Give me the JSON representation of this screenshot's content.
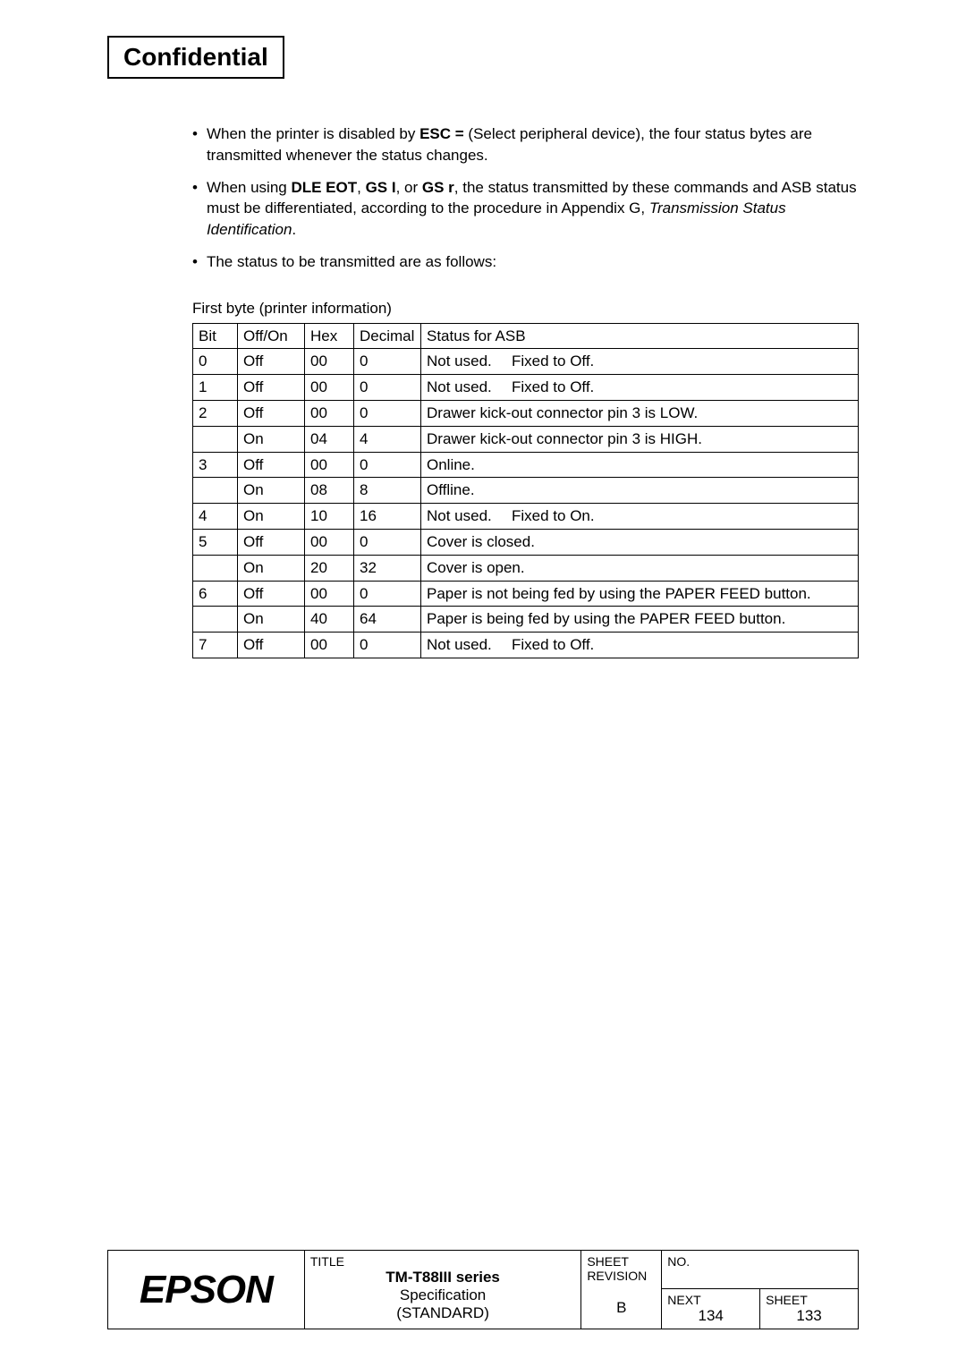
{
  "header": {
    "confidential": "Confidential"
  },
  "bullets": [
    {
      "text_before_bold1": "When the printer is disabled by ",
      "bold1": "ESC =",
      "text_after_bold1": " (Select peripheral device), the four status bytes are transmitted whenever the status changes."
    },
    {
      "text_before": "When using ",
      "bold1": "DLE EOT",
      "sep1": ", ",
      "bold2": "GS I",
      "sep2": ", or ",
      "bold3": "GS r",
      "text_mid": ", the status transmitted by these commands and ASB status must be differentiated, according to the procedure in Appendix G, ",
      "italic": "Transmission Status Identification",
      "text_end": "."
    },
    {
      "text": "The status to be transmitted are as follows:"
    }
  ],
  "table": {
    "caption": "First byte (printer information)",
    "headers": [
      "Bit",
      "Off/On",
      "Hex",
      "Decimal",
      "Status for ASB"
    ],
    "rows": [
      {
        "bit": "0",
        "offon": "Off",
        "hex": "00",
        "dec": "0",
        "status_pre": "Not used.",
        "status_post": "Fixed to Off.",
        "notused": true
      },
      {
        "bit": "1",
        "offon": "Off",
        "hex": "00",
        "dec": "0",
        "status_pre": "Not used.",
        "status_post": "Fixed to Off.",
        "notused": true
      },
      {
        "bit": "2",
        "offon": "Off",
        "hex": "00",
        "dec": "0",
        "status": "Drawer kick-out connector pin 3 is LOW."
      },
      {
        "bit": "",
        "offon": "On",
        "hex": "04",
        "dec": "4",
        "status": "Drawer kick-out connector pin 3 is HIGH."
      },
      {
        "bit": "3",
        "offon": "Off",
        "hex": "00",
        "dec": "0",
        "status": "Online."
      },
      {
        "bit": "",
        "offon": "On",
        "hex": "08",
        "dec": "8",
        "status": "Offline."
      },
      {
        "bit": "4",
        "offon": "On",
        "hex": "10",
        "dec": "16",
        "status_pre": "Not used.",
        "status_post": "Fixed to On.",
        "notused": true
      },
      {
        "bit": "5",
        "offon": "Off",
        "hex": "00",
        "dec": "0",
        "status": "Cover is closed."
      },
      {
        "bit": "",
        "offon": "On",
        "hex": "20",
        "dec": "32",
        "status": "Cover is open."
      },
      {
        "bit": "6",
        "offon": "Off",
        "hex": "00",
        "dec": "0",
        "status": "Paper is not being fed by using the PAPER FEED button."
      },
      {
        "bit": "",
        "offon": "On",
        "hex": "40",
        "dec": "64",
        "status": "Paper is being fed by using the PAPER FEED button."
      },
      {
        "bit": "7",
        "offon": "Off",
        "hex": "00",
        "dec": "0",
        "status_pre": "Not used.",
        "status_post": "Fixed to Off.",
        "notused": true
      }
    ]
  },
  "titleblock": {
    "logo": "EPSON",
    "title_label": "TITLE",
    "title_line1_pre": "TM-T88",
    "title_line1_mid": "III",
    "title_line1_post": " series",
    "title_line2": "Specification",
    "title_line3": "(STANDARD)",
    "sheet_rev_label1": "SHEET",
    "sheet_rev_label2": "REVISION",
    "sheet_rev_value": "B",
    "no_label": "NO.",
    "next_label": "NEXT",
    "next_value": "134",
    "sheet_label": "SHEET",
    "sheet_value": "133"
  }
}
